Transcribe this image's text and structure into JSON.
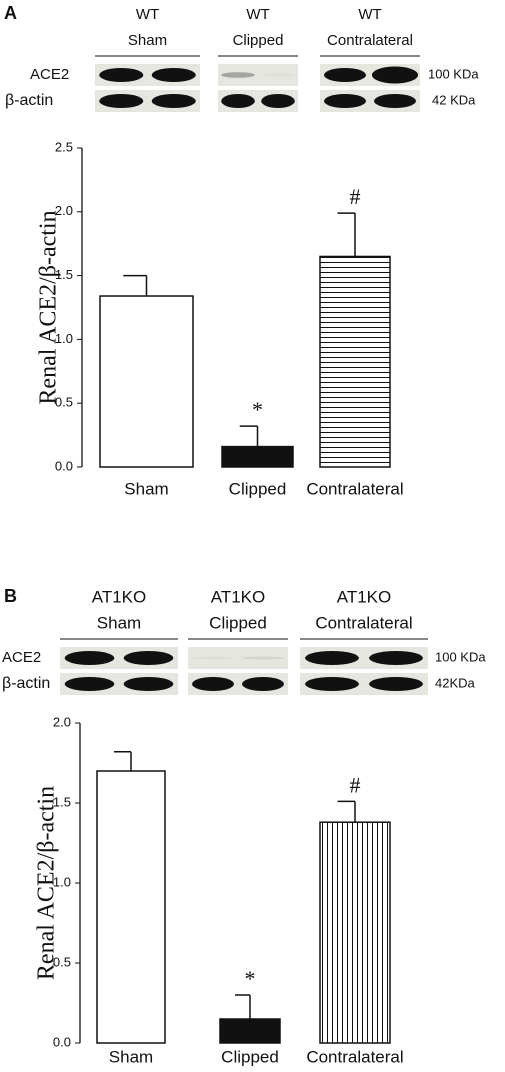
{
  "chart_data": [
    {
      "type": "bar",
      "panel": "A",
      "blot_groups": [
        [
          "WT",
          "Sham"
        ],
        [
          "WT",
          "Clipped"
        ],
        [
          "WT",
          "Contralateral"
        ]
      ],
      "blot_rows": [
        "ACE2",
        "β-actin"
      ],
      "blot_sizes": [
        "100 KDa",
        "42 KDa"
      ],
      "ylabel": "Renal ACE2/β-actin",
      "categories": [
        "Sham",
        "Clipped",
        "Contralateral"
      ],
      "values": [
        1.34,
        0.16,
        1.65
      ],
      "errors": [
        0.16,
        0.16,
        0.34
      ],
      "bar_annotations": [
        null,
        "*",
        "#"
      ],
      "patterns": [
        "none",
        "solid",
        "horizontal-lines"
      ],
      "ylim": [
        0,
        2.5
      ],
      "yticks": [
        {
          "value": 0,
          "label": "0.0"
        },
        0.5,
        {
          "value": 1,
          "label": "1.0"
        },
        1.5,
        {
          "value": 2,
          "label": "2.0"
        },
        2.5
      ]
    },
    {
      "type": "bar",
      "panel": "B",
      "blot_groups": [
        [
          "AT1KO",
          "Sham"
        ],
        [
          "AT1KO",
          "Clipped"
        ],
        [
          "AT1KO",
          "Contralateral"
        ]
      ],
      "blot_rows": [
        "ACE2",
        "β-actin"
      ],
      "blot_sizes": [
        "100 KDa",
        "42KDa"
      ],
      "ylabel": "Renal ACE2/β-actin",
      "categories": [
        "Sham",
        "Clipped",
        "Contralateral"
      ],
      "values": [
        1.7,
        0.15,
        1.38
      ],
      "errors": [
        0.12,
        0.15,
        0.13
      ],
      "bar_annotations": [
        null,
        "*",
        "#"
      ],
      "patterns": [
        "none",
        "solid",
        "vertical-lines"
      ],
      "ylim": [
        0,
        2
      ],
      "yticks": [
        {
          "value": 0,
          "label": "0.0"
        },
        0.5,
        {
          "value": 1,
          "label": "1.0"
        },
        1.5,
        {
          "value": 2,
          "label": "2.0"
        }
      ]
    }
  ]
}
